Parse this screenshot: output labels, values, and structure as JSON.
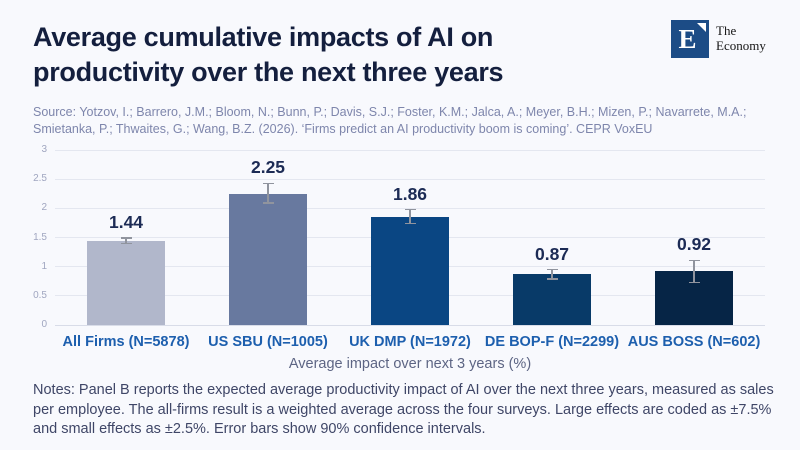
{
  "header": {
    "title": "Average cumulative impacts of AI on productivity over the next three years",
    "logo": {
      "letter": "E",
      "name_line1": "The",
      "name_line2": "Economy",
      "box_color": "#1c4c86"
    }
  },
  "source": "Source: Yotzov, I.; Barrero, J.M.; Bloom, N.; Bunn, P.; Davis, S.J.; Foster, K.M.; Jalca, A.; Meyer, B.H.; Mizen, P.; Navarrete, M.A.; Smietanka, P.; Thwaites, G.; Wang, B.Z. (2026). ‘Firms predict an AI productivity boom is coming’. CEPR VoxEU",
  "chart_data": {
    "type": "bar",
    "categories": [
      "All Firms (N=5878)",
      "US SBU (N=1005)",
      "UK DMP (N=1972)",
      "DE BOP-F (N=2299)",
      "AUS BOSS (N=602)"
    ],
    "values": [
      1.44,
      2.25,
      1.86,
      0.87,
      0.92
    ],
    "value_labels": [
      "1.44",
      "2.25",
      "1.86",
      "0.87",
      "0.92"
    ],
    "errors_low": [
      1.4,
      2.09,
      1.74,
      0.79,
      0.73
    ],
    "errors_high": [
      1.49,
      2.43,
      1.98,
      0.95,
      1.11
    ],
    "bar_colors": [
      "#b1b7cb",
      "#68799f",
      "#0a4683",
      "#083a68",
      "#062546"
    ],
    "error_bar_color": "#90949e",
    "xlabel": "Average impact over next 3 years (%)",
    "ylabel": "",
    "ylim": [
      0,
      3
    ],
    "yticks": [
      0,
      0.5,
      1,
      1.5,
      2,
      2.5,
      3
    ],
    "grid": true,
    "legend": "none",
    "annotation": "Error bars show 90% confidence intervals"
  },
  "notes": "Notes: Panel B reports the expected average productivity impact of AI over the next three years, measured as sales per employee. The all-firms result is a weighted average across the four surveys. Large effects are coded as ±7.5% and small effects as ±2.5%. Error bars show 90% confidence intervals."
}
